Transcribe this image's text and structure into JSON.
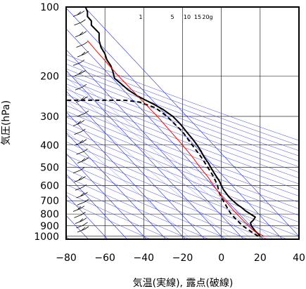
{
  "chart_data": {
    "type": "line",
    "subtype": "skew-t log-p thermodynamic diagram",
    "xlabel": "気温(実線), 露点(破線)",
    "ylabel": "気圧(hPa)",
    "xlim": [
      -80,
      40
    ],
    "ylim": [
      1030,
      100
    ],
    "y_scale": "log",
    "x_ticks": [
      -80,
      -60,
      -40,
      -20,
      0,
      20,
      40
    ],
    "y_ticks": [
      100,
      200,
      300,
      400,
      500,
      600,
      700,
      800,
      900,
      1000
    ],
    "grid": true,
    "mixing_ratio_labels": [
      "1",
      "5",
      "10",
      "15",
      "20g"
    ],
    "series": [
      {
        "role": "temperature",
        "style": "solid",
        "color": "#000000",
        "points": [
          [
            1000,
            20
          ],
          [
            975,
            19
          ],
          [
            950,
            17.5
          ],
          [
            925,
            16.5
          ],
          [
            900,
            15.5
          ],
          [
            875,
            15
          ],
          [
            850,
            16.5
          ],
          [
            825,
            17.5
          ],
          [
            800,
            15
          ],
          [
            775,
            12.5
          ],
          [
            750,
            10.5
          ],
          [
            725,
            8
          ],
          [
            700,
            6
          ],
          [
            675,
            4
          ],
          [
            650,
            2.5
          ],
          [
            625,
            1
          ],
          [
            600,
            0
          ],
          [
            575,
            -1
          ],
          [
            550,
            -2.5
          ],
          [
            525,
            -4
          ],
          [
            500,
            -5.5
          ],
          [
            475,
            -7
          ],
          [
            450,
            -9
          ],
          [
            425,
            -10.5
          ],
          [
            400,
            -12.5
          ],
          [
            375,
            -15
          ],
          [
            350,
            -18
          ],
          [
            325,
            -21
          ],
          [
            300,
            -25
          ],
          [
            280,
            -30
          ],
          [
            265,
            -35
          ],
          [
            255,
            -39
          ],
          [
            245,
            -43
          ],
          [
            230,
            -48
          ],
          [
            215,
            -52
          ],
          [
            205,
            -55
          ],
          [
            190,
            -56
          ],
          [
            180,
            -57
          ],
          [
            170,
            -59
          ],
          [
            160,
            -60
          ],
          [
            150,
            -62
          ],
          [
            140,
            -63
          ],
          [
            130,
            -63
          ],
          [
            120,
            -67
          ],
          [
            115,
            -67
          ],
          [
            110,
            -69
          ],
          [
            105,
            -69
          ],
          [
            100,
            -70
          ]
        ]
      },
      {
        "role": "dewpoint",
        "style": "dashed",
        "color": "#000000",
        "points": [
          [
            1000,
            19
          ],
          [
            975,
            17
          ],
          [
            950,
            15
          ],
          [
            925,
            13
          ],
          [
            900,
            11
          ],
          [
            875,
            9.5
          ],
          [
            850,
            8
          ],
          [
            825,
            6.5
          ],
          [
            800,
            5
          ],
          [
            775,
            4
          ],
          [
            750,
            3
          ],
          [
            725,
            2
          ],
          [
            700,
            1
          ],
          [
            650,
            -1
          ],
          [
            600,
            -2
          ],
          [
            550,
            -4
          ],
          [
            500,
            -7
          ],
          [
            450,
            -10.5
          ],
          [
            400,
            -15
          ],
          [
            350,
            -20
          ],
          [
            300,
            -28
          ],
          [
            275,
            -34
          ],
          [
            260,
            -42
          ],
          [
            255,
            -50
          ],
          [
            255,
            -60
          ],
          [
            255,
            -80
          ]
        ]
      },
      {
        "role": "parcel path",
        "style": "solid",
        "color": "#ff0000",
        "points": [
          [
            1000,
            22
          ],
          [
            950,
            17
          ],
          [
            900,
            14
          ],
          [
            850,
            11
          ],
          [
            800,
            8
          ],
          [
            750,
            5
          ],
          [
            700,
            2
          ],
          [
            650,
            -1
          ],
          [
            600,
            -4
          ],
          [
            550,
            -7
          ],
          [
            500,
            -11
          ],
          [
            450,
            -15
          ],
          [
            400,
            -20
          ],
          [
            350,
            -26
          ],
          [
            300,
            -33
          ],
          [
            250,
            -42
          ],
          [
            200,
            -53
          ],
          [
            150,
            -66
          ],
          [
            140,
            -69
          ]
        ]
      }
    ]
  }
}
